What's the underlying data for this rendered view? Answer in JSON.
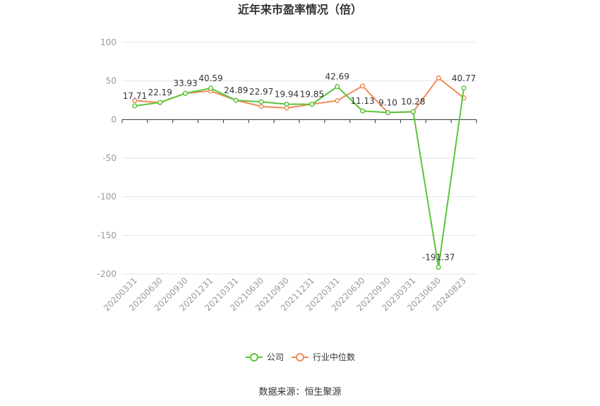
{
  "chart_data": {
    "type": "line",
    "title": "近年来市盈率情况（倍）",
    "categories": [
      "20200331",
      "20200630",
      "20200930",
      "20201231",
      "20210331",
      "20210630",
      "20210930",
      "20211231",
      "20220331",
      "20220630",
      "20220930",
      "20230331",
      "20230630",
      "20240823"
    ],
    "series": [
      {
        "name": "公司",
        "color": "#5ac43a",
        "values": [
          17.71,
          22.19,
          33.93,
          40.59,
          24.89,
          22.97,
          19.94,
          19.85,
          42.69,
          11.13,
          9.1,
          10.28,
          -191.37,
          40.77
        ],
        "labels": [
          "17.71",
          "22.19",
          "33.93",
          "40.59",
          "24.89",
          "22.97",
          "19.94",
          "19.85",
          "42.69",
          "11.13",
          "9.10",
          "10.28",
          "-191.37",
          "40.77"
        ]
      },
      {
        "name": "行业中位数",
        "color": "#f08c5a",
        "values": [
          24.5,
          22.0,
          34.0,
          37.0,
          25.0,
          17.0,
          15.0,
          20.0,
          24.5,
          43.5,
          9.0,
          10.0,
          54.0,
          28.0
        ]
      }
    ],
    "yticks": [
      100,
      50,
      0,
      -50,
      -100,
      -150,
      -200
    ],
    "ylim": [
      -200,
      100
    ],
    "grid": true,
    "legend": "bottom-center"
  },
  "footer": {
    "source": "数据来源：恒生聚源"
  }
}
